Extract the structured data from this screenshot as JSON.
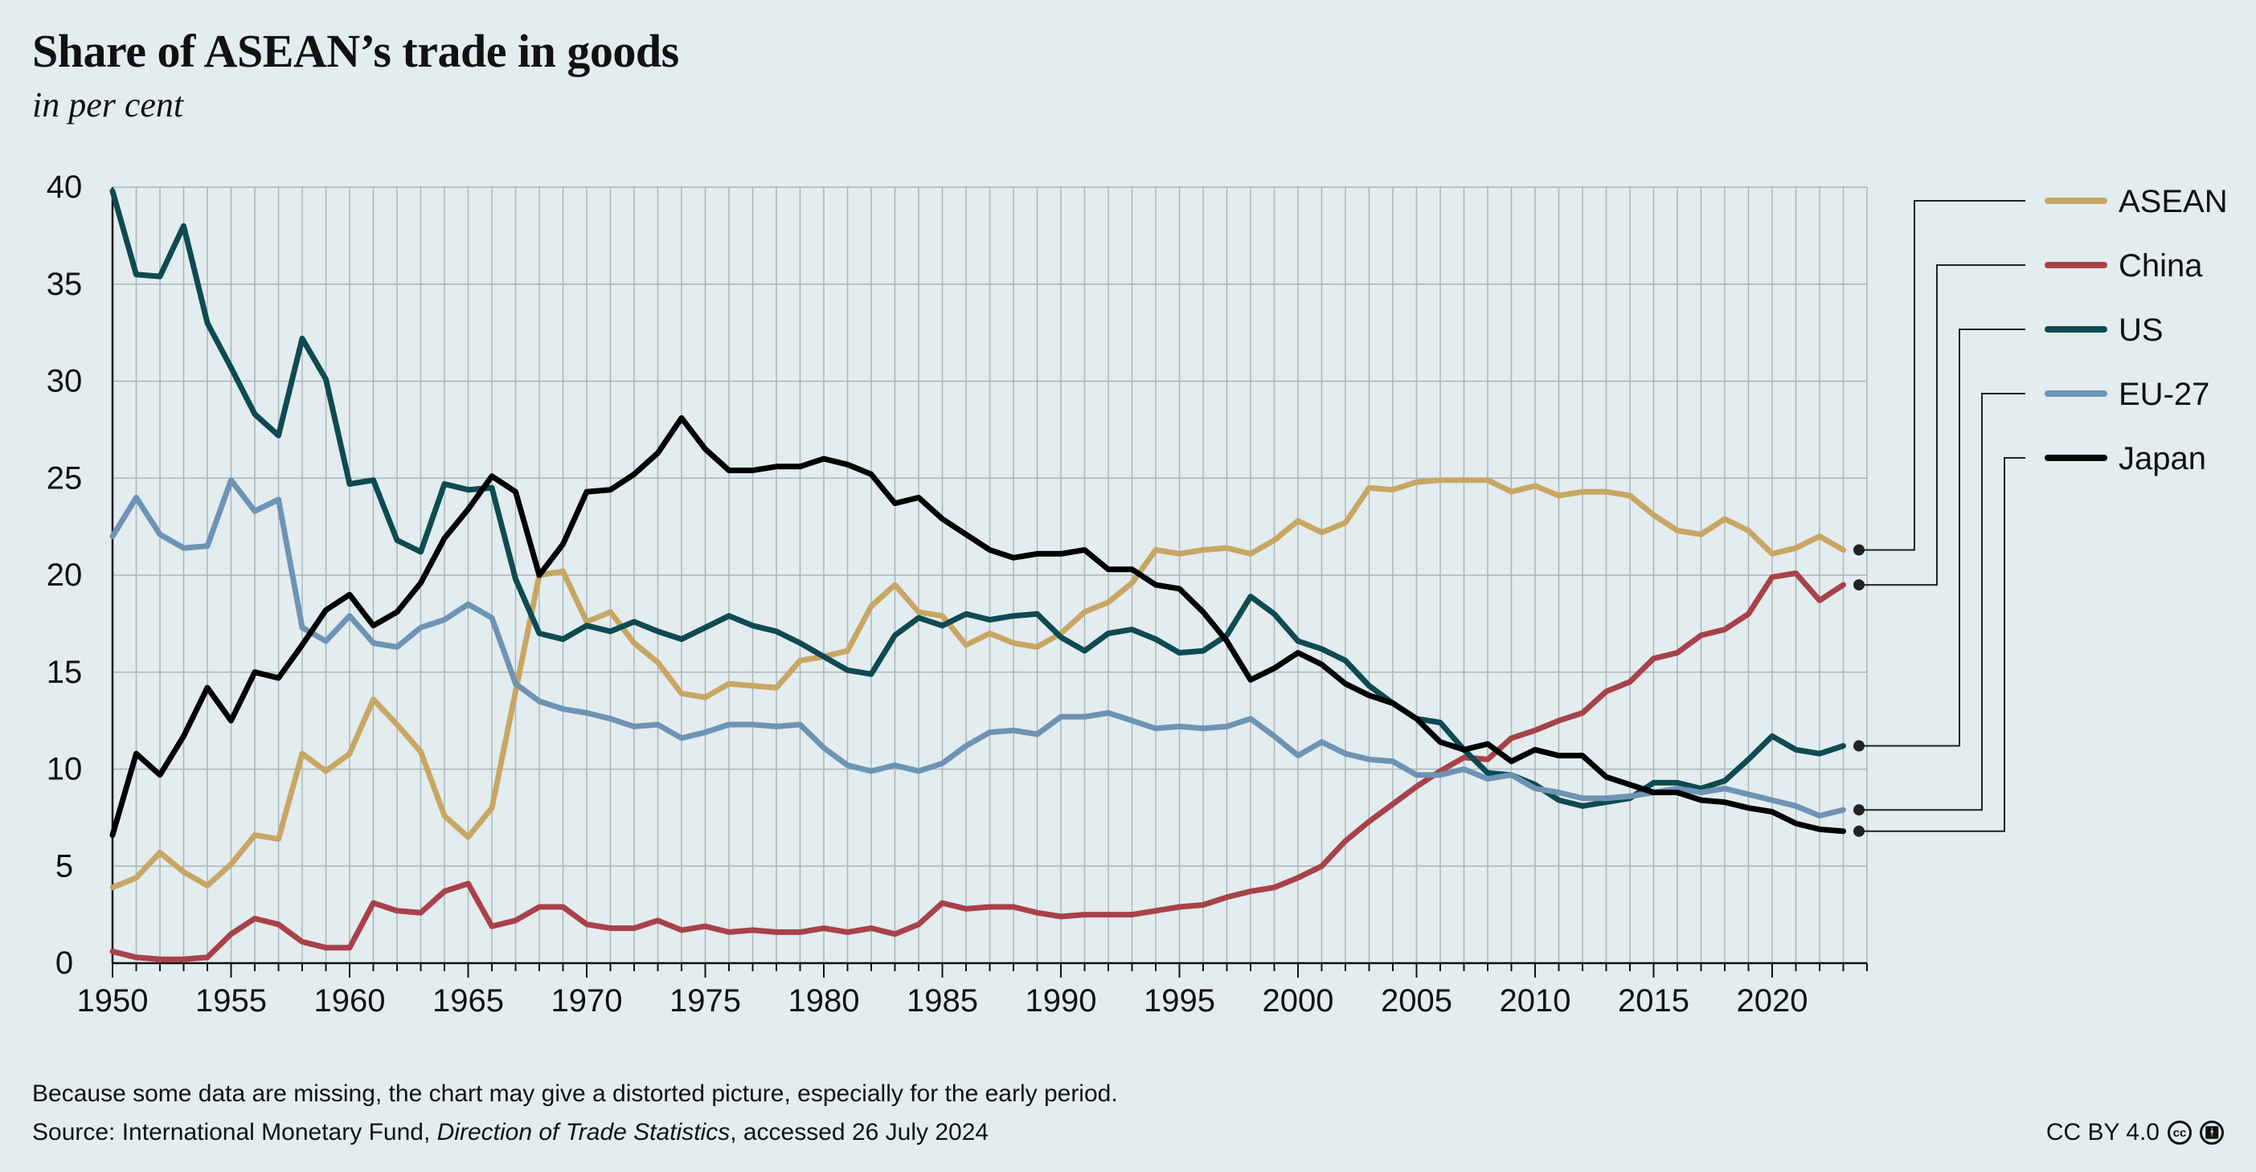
{
  "title": "Share of ASEAN’s trade in goods",
  "subtitle": "in per cent",
  "note": "Because some data are missing, the chart may give a distorted picture, especially for the early period.",
  "source": {
    "prefix": "Source: International Monetary Fund, ",
    "publication": "Direction of Trade Statistics",
    "suffix": ", accessed 26 July 2024"
  },
  "license": {
    "text": "CC BY 4.0",
    "cc_icon": "cc-icon",
    "by_icon": "attribution-icon"
  },
  "chart_data": {
    "type": "line",
    "x_start": 1950,
    "x_end": 2023,
    "xlim": [
      1950,
      2024
    ],
    "ylim": [
      0,
      40
    ],
    "x_ticks": [
      1950,
      1955,
      1960,
      1965,
      1970,
      1975,
      1980,
      1985,
      1990,
      1995,
      2000,
      2005,
      2010,
      2015,
      2020
    ],
    "y_ticks": [
      0,
      5,
      10,
      15,
      20,
      25,
      30,
      35,
      40
    ],
    "grid": true,
    "legend_position": "right",
    "title": "Share of ASEAN’s trade in goods",
    "ylabel": "in per cent",
    "series": [
      {
        "name": "ASEAN",
        "color": "#c8a664",
        "values": [
          3.9,
          4.4,
          5.7,
          4.7,
          4.0,
          5.1,
          6.6,
          6.4,
          10.8,
          9.9,
          10.8,
          13.6,
          12.3,
          10.9,
          7.6,
          6.5,
          8.0,
          14.0,
          20.0,
          20.2,
          17.6,
          18.1,
          16.5,
          15.5,
          13.9,
          13.7,
          14.4,
          14.3,
          14.2,
          15.6,
          15.8,
          16.1,
          18.4,
          19.5,
          18.1,
          17.9,
          16.4,
          17.0,
          16.5,
          16.3,
          17.0,
          18.1,
          18.6,
          19.6,
          21.3,
          21.1,
          21.3,
          21.4,
          21.1,
          21.8,
          22.8,
          22.2,
          22.7,
          24.5,
          24.4,
          24.8,
          24.9,
          24.9,
          24.9,
          24.3,
          24.6,
          24.1,
          24.3,
          24.3,
          24.1,
          23.1,
          22.3,
          22.1,
          22.9,
          22.3,
          21.1,
          21.4,
          22.0,
          21.3
        ]
      },
      {
        "name": "China",
        "color": "#a8424a",
        "values": [
          0.6,
          0.3,
          0.2,
          0.2,
          0.3,
          1.5,
          2.3,
          2.0,
          1.1,
          0.8,
          0.8,
          3.1,
          2.7,
          2.6,
          3.7,
          4.1,
          1.9,
          2.2,
          2.9,
          2.9,
          2.0,
          1.8,
          1.8,
          2.2,
          1.7,
          1.9,
          1.6,
          1.7,
          1.6,
          1.6,
          1.8,
          1.6,
          1.8,
          1.5,
          2.0,
          3.1,
          2.8,
          2.9,
          2.9,
          2.6,
          2.4,
          2.5,
          2.5,
          2.5,
          2.7,
          2.9,
          3.0,
          3.4,
          3.7,
          3.9,
          4.4,
          5.0,
          6.3,
          7.3,
          8.2,
          9.1,
          9.9,
          10.6,
          10.5,
          11.6,
          12.0,
          12.5,
          12.9,
          14.0,
          14.5,
          15.7,
          16.0,
          16.9,
          17.2,
          18.0,
          19.9,
          20.1,
          18.7,
          19.5
        ]
      },
      {
        "name": "US",
        "color": "#0e4a52",
        "values": [
          39.8,
          35.5,
          35.4,
          38.0,
          33.0,
          30.7,
          28.3,
          27.2,
          32.2,
          30.1,
          24.7,
          24.9,
          21.8,
          21.2,
          24.7,
          24.4,
          24.5,
          19.8,
          17.0,
          16.7,
          17.4,
          17.1,
          17.6,
          17.1,
          16.7,
          17.3,
          17.9,
          17.4,
          17.1,
          16.5,
          15.8,
          15.1,
          14.9,
          16.9,
          17.8,
          17.4,
          18.0,
          17.7,
          17.9,
          18.0,
          16.8,
          16.1,
          17.0,
          17.2,
          16.7,
          16.0,
          16.1,
          16.9,
          18.9,
          18.0,
          16.6,
          16.2,
          15.6,
          14.3,
          13.4,
          12.6,
          12.4,
          11.0,
          9.8,
          9.7,
          9.2,
          8.4,
          8.1,
          8.3,
          8.5,
          9.3,
          9.3,
          9.0,
          9.4,
          10.5,
          11.7,
          11.0,
          10.8,
          11.2
        ]
      },
      {
        "name": "EU-27",
        "color": "#6e93b4",
        "values": [
          22.0,
          24.0,
          22.1,
          21.4,
          21.5,
          24.9,
          23.3,
          23.9,
          17.3,
          16.6,
          17.9,
          16.5,
          16.3,
          17.3,
          17.7,
          18.5,
          17.8,
          14.4,
          13.5,
          13.1,
          12.9,
          12.6,
          12.2,
          12.3,
          11.6,
          11.9,
          12.3,
          12.3,
          12.2,
          12.3,
          11.1,
          10.2,
          9.9,
          10.2,
          9.9,
          10.3,
          11.2,
          11.9,
          12.0,
          11.8,
          12.7,
          12.7,
          12.9,
          12.5,
          12.1,
          12.2,
          12.1,
          12.2,
          12.6,
          11.7,
          10.7,
          11.4,
          10.8,
          10.5,
          10.4,
          9.7,
          9.7,
          10.0,
          9.5,
          9.7,
          9.0,
          8.8,
          8.5,
          8.5,
          8.6,
          8.8,
          9.0,
          8.8,
          9.0,
          8.7,
          8.4,
          8.1,
          7.6,
          7.9
        ]
      },
      {
        "name": "Japan",
        "color": "#000000",
        "values": [
          6.6,
          10.8,
          9.7,
          11.7,
          14.2,
          12.5,
          15.0,
          14.7,
          16.4,
          18.2,
          19.0,
          17.4,
          18.1,
          19.6,
          21.9,
          23.4,
          25.1,
          24.3,
          20.0,
          21.6,
          24.3,
          24.4,
          25.2,
          26.3,
          28.1,
          26.5,
          25.4,
          25.4,
          25.6,
          25.6,
          26.0,
          25.7,
          25.2,
          23.7,
          24.0,
          22.9,
          22.1,
          21.3,
          20.9,
          21.1,
          21.1,
          21.3,
          20.3,
          20.3,
          19.5,
          19.3,
          18.1,
          16.6,
          14.6,
          15.2,
          16.0,
          15.4,
          14.4,
          13.8,
          13.4,
          12.6,
          11.4,
          11.0,
          11.3,
          10.4,
          11.0,
          10.7,
          10.7,
          9.6,
          9.2,
          8.8,
          8.8,
          8.4,
          8.3,
          8.0,
          7.8,
          7.2,
          6.9,
          6.8
        ]
      }
    ]
  }
}
